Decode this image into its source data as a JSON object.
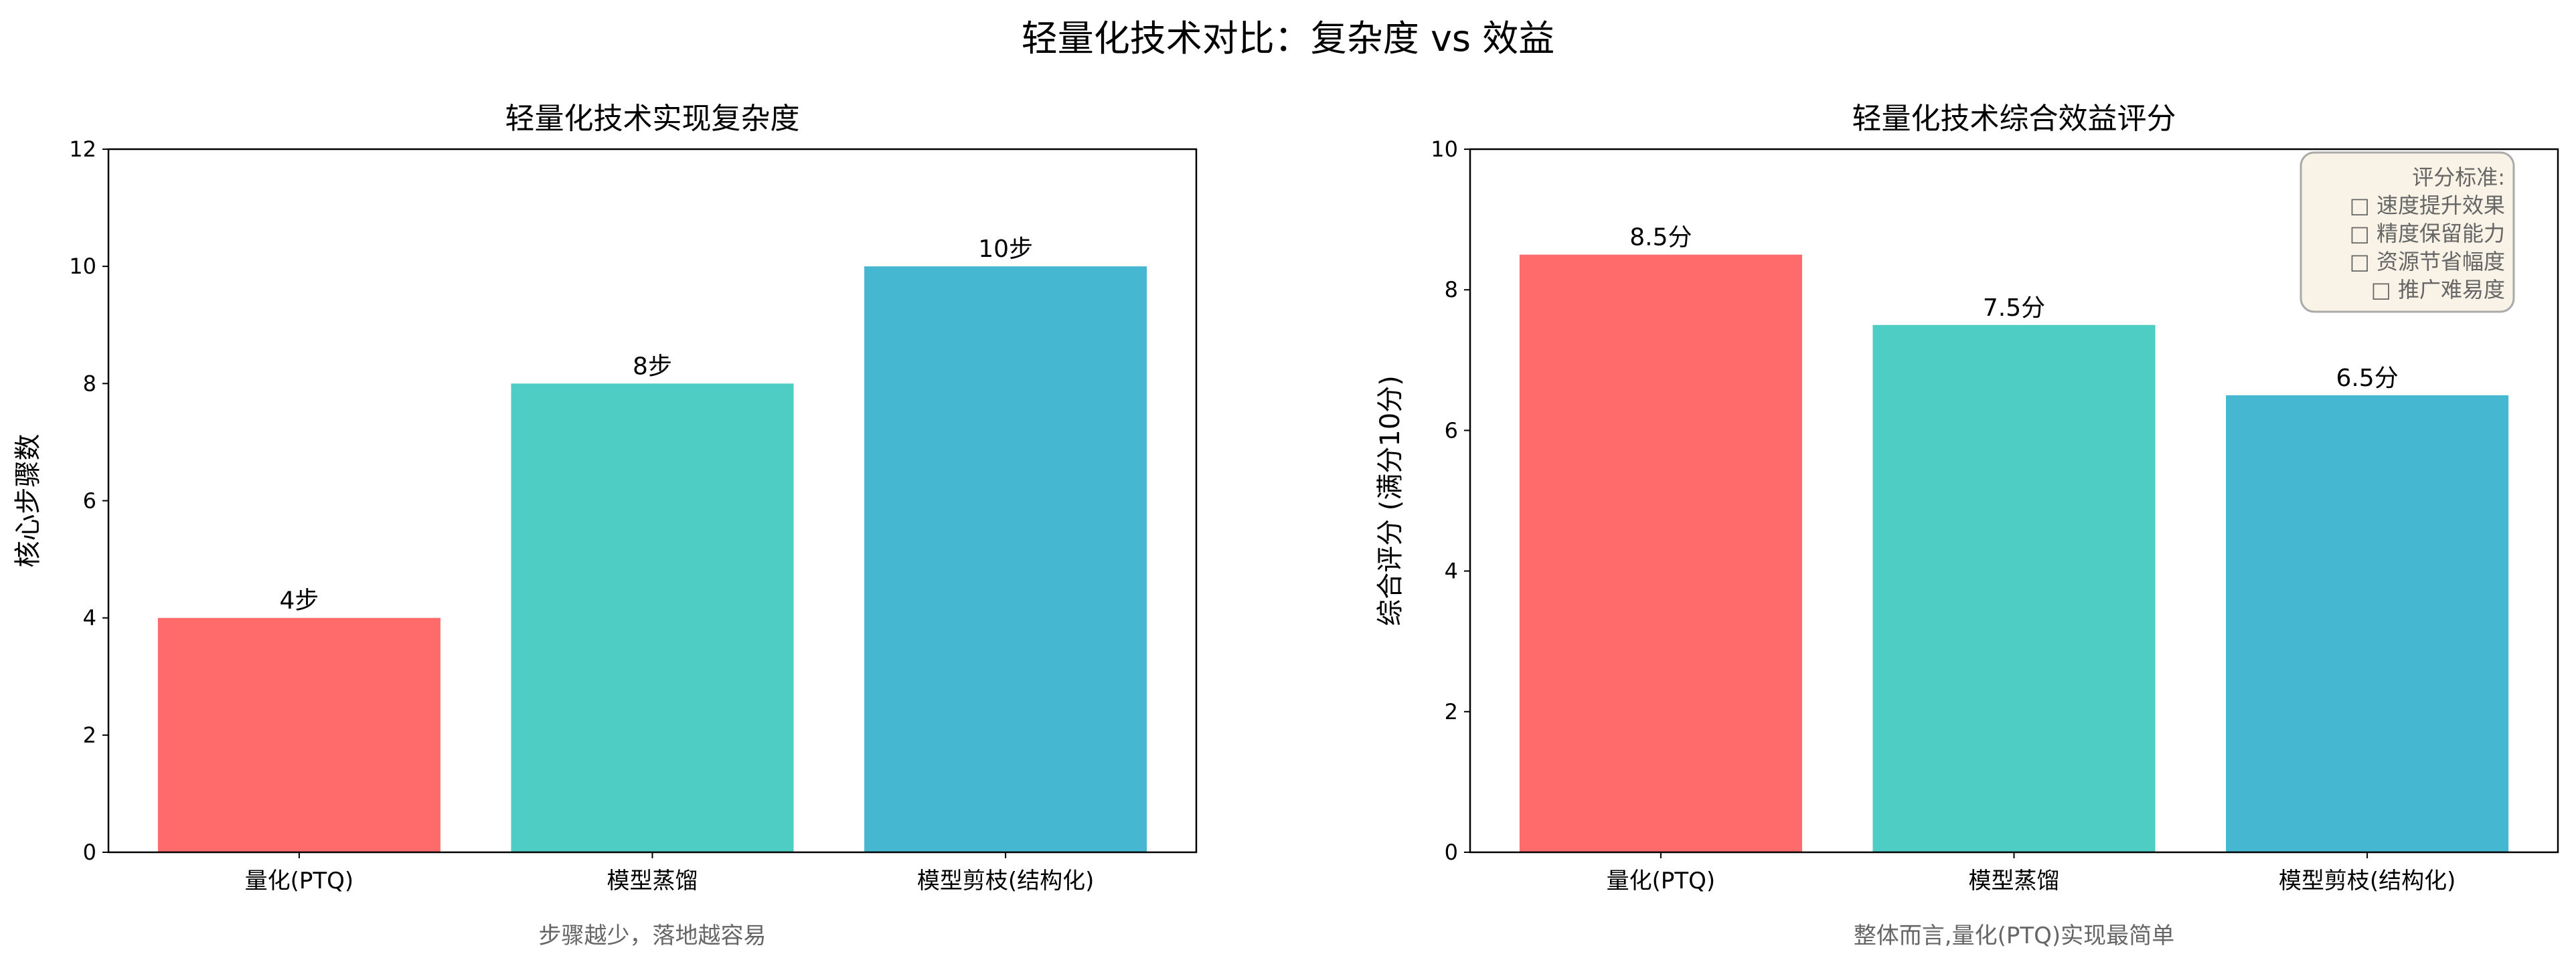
{
  "colors": {
    "red": "#FF6B6B",
    "teal": "#4ECDC4",
    "blue": "#45B7D1"
  },
  "chart_data": {
    "title": "轻量化技术对比：复杂度 vs 效益",
    "charts": [
      {
        "type": "bar",
        "title": "轻量化技术实现复杂度",
        "categories": [
          "量化(PTQ)",
          "模型蒸馏",
          "模型剪枝(结构化)"
        ],
        "values": [
          4,
          8,
          10
        ],
        "data_labels": [
          "4步",
          "8步",
          "10步"
        ],
        "xlabel": "步骤越少，落地越容易",
        "ylabel": "核心步骤数",
        "ylim": [
          0,
          12
        ],
        "yticks": [
          "0",
          "2",
          "4",
          "6",
          "8",
          "10",
          "12"
        ],
        "grid": false
      },
      {
        "type": "bar",
        "title": "轻量化技术综合效益评分",
        "categories": [
          "量化(PTQ)",
          "模型蒸馏",
          "模型剪枝(结构化)"
        ],
        "values": [
          8.5,
          7.5,
          6.5
        ],
        "data_labels": [
          "8.5分",
          "7.5分",
          "6.5分"
        ],
        "xlabel": "整体而言,量化(PTQ)实现最简单",
        "ylabel": "综合评分 (满分10分)",
        "ylim": [
          0,
          10
        ],
        "yticks": [
          "0",
          "2",
          "4",
          "6",
          "8",
          "10"
        ],
        "grid": false,
        "annotation": {
          "title": "评分标准:",
          "items": [
            "□ 速度提升效果",
            "□ 精度保留能力",
            "□ 资源节省幅度",
            "□ 推广难易度"
          ],
          "placement": "top-right"
        }
      }
    ]
  }
}
